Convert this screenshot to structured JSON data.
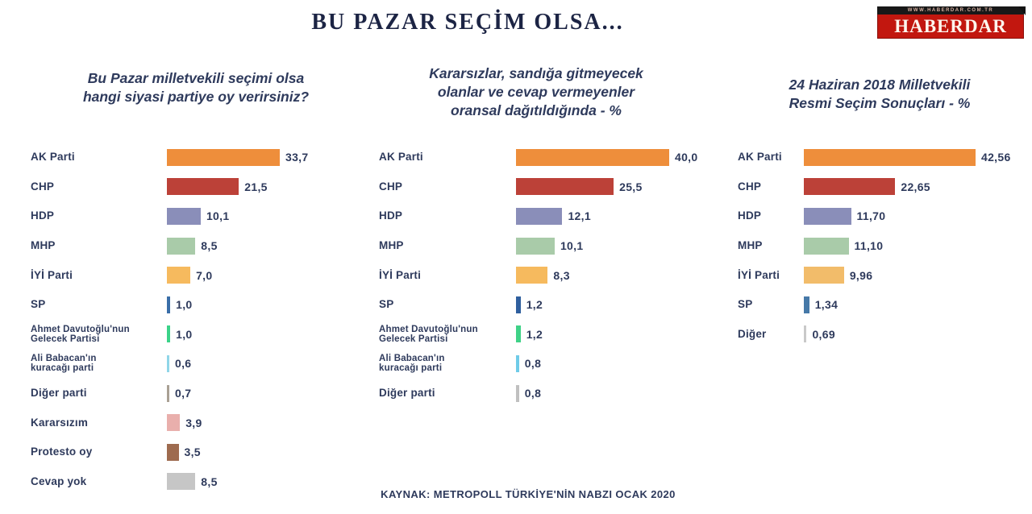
{
  "title": "BU PAZAR SEÇİM OLSA...",
  "logo": {
    "url_text": "WWW.HABERDAR.COM.TR",
    "name": "HABERDAR",
    "brand_color": "#c2170f"
  },
  "source": "KAYNAK: METROPOLL TÜRKİYE'NİN NABZI OCAK 2020",
  "text_color": "#2e3a5c",
  "chart_data": [
    {
      "type": "bar",
      "orientation": "horizontal",
      "title": "Bu Pazar milletvekili seçimi olsa\nhangi siyasi partiye oy verirsiniz?",
      "unit": "%",
      "xlim": [
        0,
        35
      ],
      "grid": false,
      "categories": [
        "AK Parti",
        "CHP",
        "HDP",
        "MHP",
        "İYİ Parti",
        "SP",
        "Ahmet Davutoğlu'nun\nGelecek Partisi",
        "Ali Babacan'ın\nkuracağı parti",
        "Diğer parti",
        "Kararsızım",
        "Protesto oy",
        "Cevap yok"
      ],
      "values": [
        33.7,
        21.5,
        10.1,
        8.5,
        7.0,
        1.0,
        1.0,
        0.6,
        0.7,
        3.9,
        3.5,
        8.5
      ],
      "value_labels": [
        "33,7",
        "21,5",
        "10,1",
        "8,5",
        "7,0",
        "1,0",
        "1,0",
        "0,6",
        "0,7",
        "3,9",
        "3,5",
        "8,5"
      ],
      "bar_colors": [
        "#ee8e3b",
        "#bc4138",
        "#8a8eb9",
        "#a9cba9",
        "#f6ba5e",
        "#3a6ea8",
        "#3bd389",
        "#90d6e8",
        "#a9a094",
        "#e9afac",
        "#9e6b4f",
        "#c6c6c6"
      ]
    },
    {
      "type": "bar",
      "orientation": "horizontal",
      "title": "Kararsızlar, sandığa gitmeyecek\nolanlar ve cevap vermeyenler\noransal dağıtıldığında - %",
      "unit": "%",
      "xlim": [
        0,
        42
      ],
      "grid": false,
      "categories": [
        "AK Parti",
        "CHP",
        "HDP",
        "MHP",
        "İYİ Parti",
        "SP",
        "Ahmet Davutoğlu'nun\nGelecek Partisi",
        "Ali Babacan'ın\nkuracağı parti",
        "Diğer parti"
      ],
      "values": [
        40.0,
        25.5,
        12.1,
        10.1,
        8.3,
        1.2,
        1.2,
        0.8,
        0.8
      ],
      "value_labels": [
        "40,0",
        "25,5",
        "12,1",
        "10,1",
        "8,3",
        "1,2",
        "1,2",
        "0,8",
        "0,8"
      ],
      "bar_colors": [
        "#ee8e3b",
        "#bc4138",
        "#8a8eb9",
        "#a9cba9",
        "#f6ba5e",
        "#2f5f9e",
        "#3fd287",
        "#6fcbe8",
        "#c0c0c0"
      ]
    },
    {
      "type": "bar",
      "orientation": "horizontal",
      "title": "24 Haziran 2018 Milletvekili\nResmi Seçim Sonuçları - %",
      "unit": "%",
      "xlim": [
        0,
        45
      ],
      "grid": false,
      "categories": [
        "AK Parti",
        "CHP",
        "HDP",
        "MHP",
        "İYİ Parti",
        "SP",
        "Diğer"
      ],
      "values": [
        42.56,
        22.65,
        11.7,
        11.1,
        9.96,
        1.34,
        0.69
      ],
      "value_labels": [
        "42,56",
        "22,65",
        "11,70",
        "11,10",
        "9,96",
        "1,34",
        "0,69"
      ],
      "bar_colors": [
        "#ee8e3b",
        "#bc4138",
        "#8a8eb9",
        "#a9cba9",
        "#f2bc6a",
        "#4679a8",
        "#c9c9c9"
      ]
    }
  ]
}
